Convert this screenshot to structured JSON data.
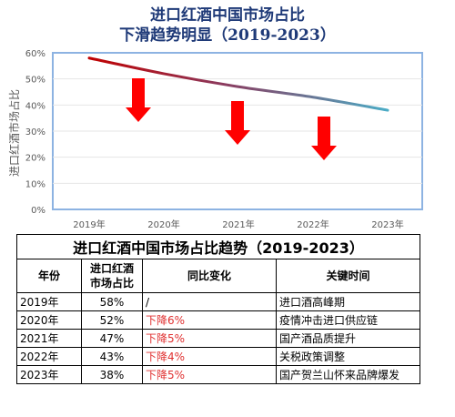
{
  "title_lines": [
    "进口红酒中国市场占比",
    "下滑趋势明显（2019-2023）"
  ],
  "chart_data": {
    "type": "line",
    "title": "进口红酒中国市场占比 下滑趋势明显（2019-2023）",
    "ylabel": "进口红酒市场占比",
    "xlabel": "",
    "categories": [
      "2019年",
      "2020年",
      "2021年",
      "2022年",
      "2023年"
    ],
    "values": [
      58,
      52,
      47,
      43,
      38
    ],
    "ylim": [
      0,
      60
    ],
    "yticks": [
      "0%",
      "10%",
      "20%",
      "30%",
      "40%",
      "50%",
      "60%"
    ],
    "grid": true,
    "line_color_start": "#c00000",
    "line_color_end": "#4bacc6",
    "annotations": [
      "down-arrow",
      "down-arrow",
      "down-arrow"
    ],
    "arrow_color": "#ff0000"
  },
  "table": {
    "caption": "进口红酒中国市场占比趋势（2019-2023）",
    "headers": [
      "年份",
      "进口红酒\n市场占比",
      "同比变化",
      "关键时间"
    ],
    "rows": [
      {
        "year": "2019年",
        "share": "58%",
        "yoy": "/",
        "event": "进口酒高峰期"
      },
      {
        "year": "2020年",
        "share": "52%",
        "yoy": "下降6%",
        "event": "疫情冲击进口供应链"
      },
      {
        "year": "2021年",
        "share": "47%",
        "yoy": "下降5%",
        "event": "国产酒品质提升"
      },
      {
        "year": "2022年",
        "share": "43%",
        "yoy": "下降4%",
        "event": "关税政策调整"
      },
      {
        "year": "2023年",
        "share": "38%",
        "yoy": "下降5%",
        "event": "国产贺兰山怀来品牌爆发"
      }
    ]
  }
}
